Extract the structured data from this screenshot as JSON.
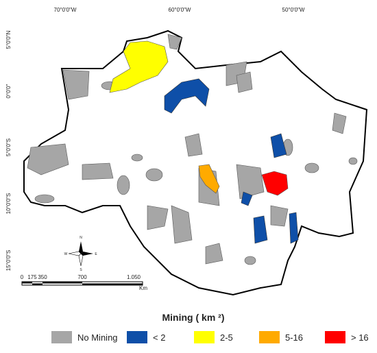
{
  "graticule": {
    "top": [
      "70°0'0\"W",
      "60°0'0\"W",
      "50°0'0\"W"
    ],
    "left": [
      "5°0'0\"N",
      "0°0'0\"",
      "5°0'0\"S",
      "10°0'0\"S",
      "15°0'0\"S"
    ]
  },
  "compass": {
    "north": "N",
    "south": "S",
    "east": "E",
    "west": "W"
  },
  "scale_bar": {
    "labels": [
      "0",
      "175",
      "350",
      "700",
      "1.050"
    ],
    "unit": "Km"
  },
  "legend": {
    "title": "Mining ( km ²)",
    "items": [
      {
        "label": "No Mining",
        "color": "#a6a6a6"
      },
      {
        "label": "< 2",
        "color": "#0e4fa8"
      },
      {
        "label": "2-5",
        "color": "#ffff00"
      },
      {
        "label": "5-16",
        "color": "#ffaa00"
      },
      {
        "label": "> 16",
        "color": "#ff0000"
      }
    ]
  }
}
